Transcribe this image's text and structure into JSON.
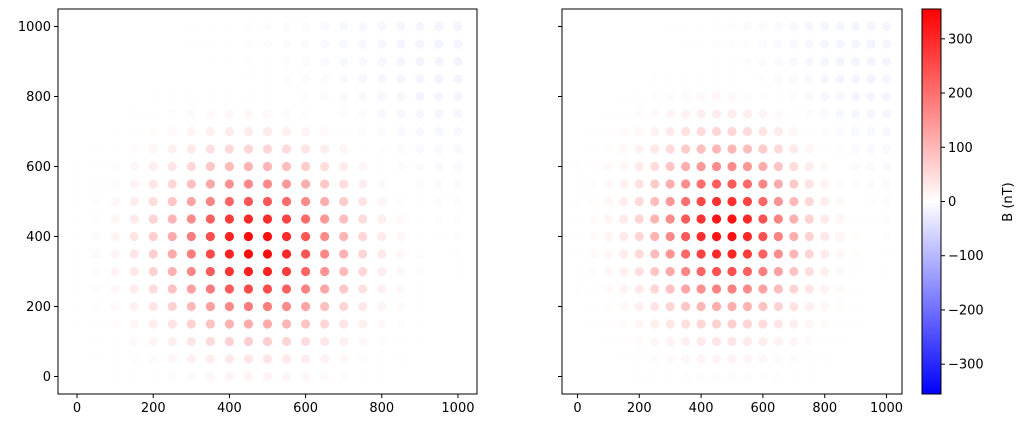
{
  "chart_data": [
    {
      "type": "scatter",
      "xlim": [
        -50,
        1050
      ],
      "ylim": [
        -50,
        1050
      ],
      "x_ticks": [
        0,
        200,
        400,
        600,
        800,
        1000
      ],
      "y_ticks": [
        0,
        200,
        400,
        600,
        800,
        1000
      ],
      "y_tick_labels_shown": true,
      "grid": false,
      "point_grid": {
        "x_start": 0,
        "x_end": 1000,
        "y_start": 0,
        "y_end": 1000,
        "step": 50
      },
      "field": {
        "peak_x": 470,
        "peak_y": 370,
        "peak_value": 350,
        "core_width": 150,
        "negative_x": 950,
        "negative_y": 900,
        "negative_value": -15,
        "negative_width": 280
      }
    },
    {
      "type": "scatter",
      "xlim": [
        -50,
        1050
      ],
      "ylim": [
        -50,
        1050
      ],
      "x_ticks": [
        0,
        200,
        400,
        600,
        800,
        1000
      ],
      "y_ticks": [
        0,
        200,
        400,
        600,
        800,
        1000
      ],
      "y_tick_labels_shown": false,
      "grid": false,
      "point_grid": {
        "x_start": 0,
        "x_end": 1000,
        "y_start": 0,
        "y_end": 1000,
        "step": 50
      },
      "field": {
        "peak_x": 480,
        "peak_y": 420,
        "peak_value": 340,
        "core_width": 150,
        "negative_x": 950,
        "negative_y": 900,
        "negative_value": -15,
        "negative_width": 280
      }
    }
  ],
  "colorbar": {
    "label": "B (nT)",
    "range": [
      -355,
      355
    ],
    "ticks": [
      300,
      200,
      100,
      0,
      -100,
      -200,
      -300
    ],
    "tick_labels": [
      "300",
      "200",
      "100",
      "0",
      "−100",
      "−200",
      "−300"
    ],
    "colormap": "bwr",
    "low_color": "#0000ff",
    "mid_color": "#ffffff",
    "high_color": "#ff0000"
  }
}
